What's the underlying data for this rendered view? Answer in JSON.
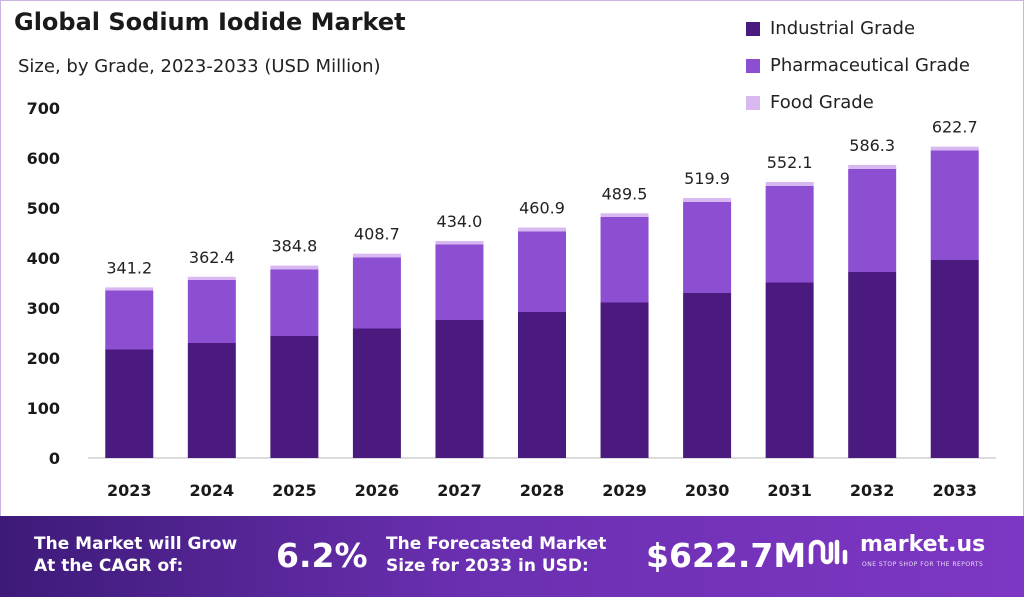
{
  "chart_data": {
    "type": "bar",
    "stacked": true,
    "title": "Global Sodium Iodide Market",
    "subtitle": "Size, by Grade, 2023-2033 (USD Million)",
    "categories": [
      "2023",
      "2024",
      "2025",
      "2026",
      "2027",
      "2028",
      "2029",
      "2030",
      "2031",
      "2032",
      "2033"
    ],
    "series": [
      {
        "name": "Industrial Grade",
        "color": "#4b1a7e",
        "values": [
          217,
          230,
          244,
          259,
          276,
          292,
          311,
          330,
          351,
          372,
          396
        ]
      },
      {
        "name": "Pharmaceutical Grade",
        "color": "#8c4fd1",
        "values": [
          118,
          126,
          133,
          142,
          151,
          161,
          171,
          182,
          193,
          206,
          219
        ]
      },
      {
        "name": "Food Grade",
        "color": "#d9b8f2",
        "values": [
          6.2,
          6.4,
          7.8,
          7.7,
          7.0,
          7.9,
          7.5,
          7.9,
          8.1,
          8.3,
          7.7
        ]
      }
    ],
    "totals": [
      "341.2",
      "362.4",
      "384.8",
      "408.7",
      "434.0",
      "460.9",
      "489.5",
      "519.9",
      "552.1",
      "586.3",
      "622.7"
    ],
    "yticks": [
      0,
      100,
      200,
      300,
      400,
      500,
      600,
      700
    ],
    "ylim": [
      0,
      700
    ],
    "grid": false,
    "legend": "top-right"
  },
  "banner": {
    "cagr_label_line1": "The Market will Grow",
    "cagr_label_line2": "At the CAGR of:",
    "cagr_value": "6.2%",
    "forecast_label_line1": "The Forecasted Market",
    "forecast_label_line2": "Size for 2033 in USD:",
    "forecast_value": "$622.7M",
    "brand_name": "market.us",
    "brand_tagline": "ONE STOP SHOP FOR THE REPORTS",
    "brand_icon": "market-us-logo-icon"
  }
}
